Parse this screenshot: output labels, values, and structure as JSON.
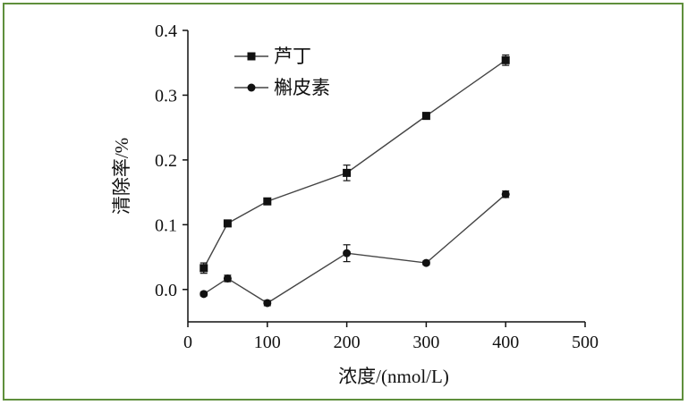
{
  "chart_data": {
    "type": "line",
    "xlabel": "浓度/(nmol/L)",
    "ylabel": "清除率/%",
    "xlim": [
      0,
      500
    ],
    "ylim": [
      -0.05,
      0.4
    ],
    "xticks": [
      0,
      100,
      200,
      300,
      400,
      500
    ],
    "yticks": [
      "0.0",
      "0.1",
      "0.2",
      "0.3",
      "0.4"
    ],
    "ytick_values": [
      0.0,
      0.1,
      0.2,
      0.3,
      0.4
    ],
    "grid": false,
    "legend_position": "top-left",
    "series": [
      {
        "name": "芦丁",
        "marker": "square",
        "color": "#111111",
        "x": [
          20,
          50,
          100,
          200,
          300,
          400
        ],
        "values": [
          0.033,
          0.102,
          0.136,
          0.18,
          0.268,
          0.354
        ],
        "errors": [
          0.008,
          0.005,
          0.003,
          0.012,
          0.005,
          0.008
        ]
      },
      {
        "name": "槲皮素",
        "marker": "circle",
        "color": "#111111",
        "x": [
          20,
          50,
          100,
          200,
          300,
          400
        ],
        "values": [
          -0.007,
          0.017,
          -0.021,
          0.056,
          0.041,
          0.147
        ],
        "errors": [
          0.003,
          0.005,
          0.004,
          0.013,
          0.003,
          0.005
        ]
      }
    ]
  }
}
